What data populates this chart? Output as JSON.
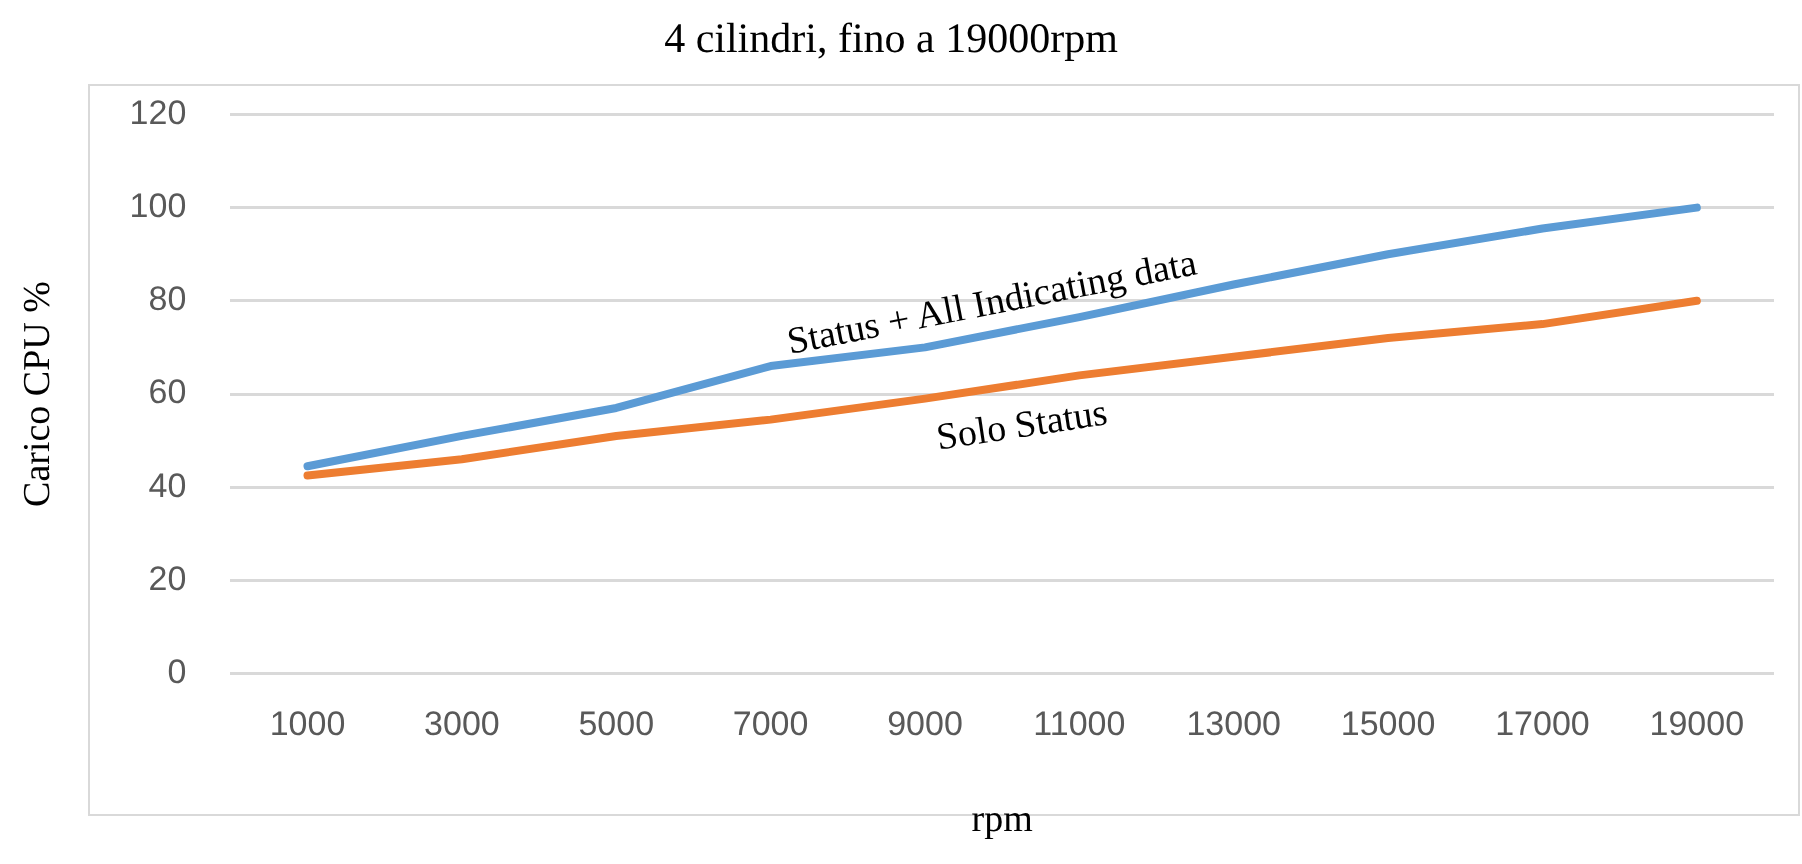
{
  "chart_data": {
    "type": "line",
    "title": "4 cilindri, fino a 19000rpm",
    "xlabel": "rpm",
    "ylabel": "Carico CPU %",
    "categories": [
      "1000",
      "3000",
      "5000",
      "7000",
      "9000",
      "11000",
      "13000",
      "15000",
      "17000",
      "19000"
    ],
    "series": [
      {
        "name": "Status + All Indicating data",
        "color": "#5b9bd5",
        "values": [
          44.5,
          51,
          57,
          66,
          70,
          76.5,
          83.5,
          90,
          95.5,
          100
        ]
      },
      {
        "name": "Solo Status",
        "color": "#ed7d31",
        "values": [
          42.5,
          46,
          51,
          54.5,
          59,
          64,
          68,
          72,
          75,
          80
        ]
      }
    ],
    "ylim": [
      0,
      120
    ],
    "yticks": [
      0,
      20,
      40,
      60,
      80,
      100,
      120
    ],
    "grid": "y",
    "legend": false,
    "marker": "none",
    "line_style": "solid"
  }
}
